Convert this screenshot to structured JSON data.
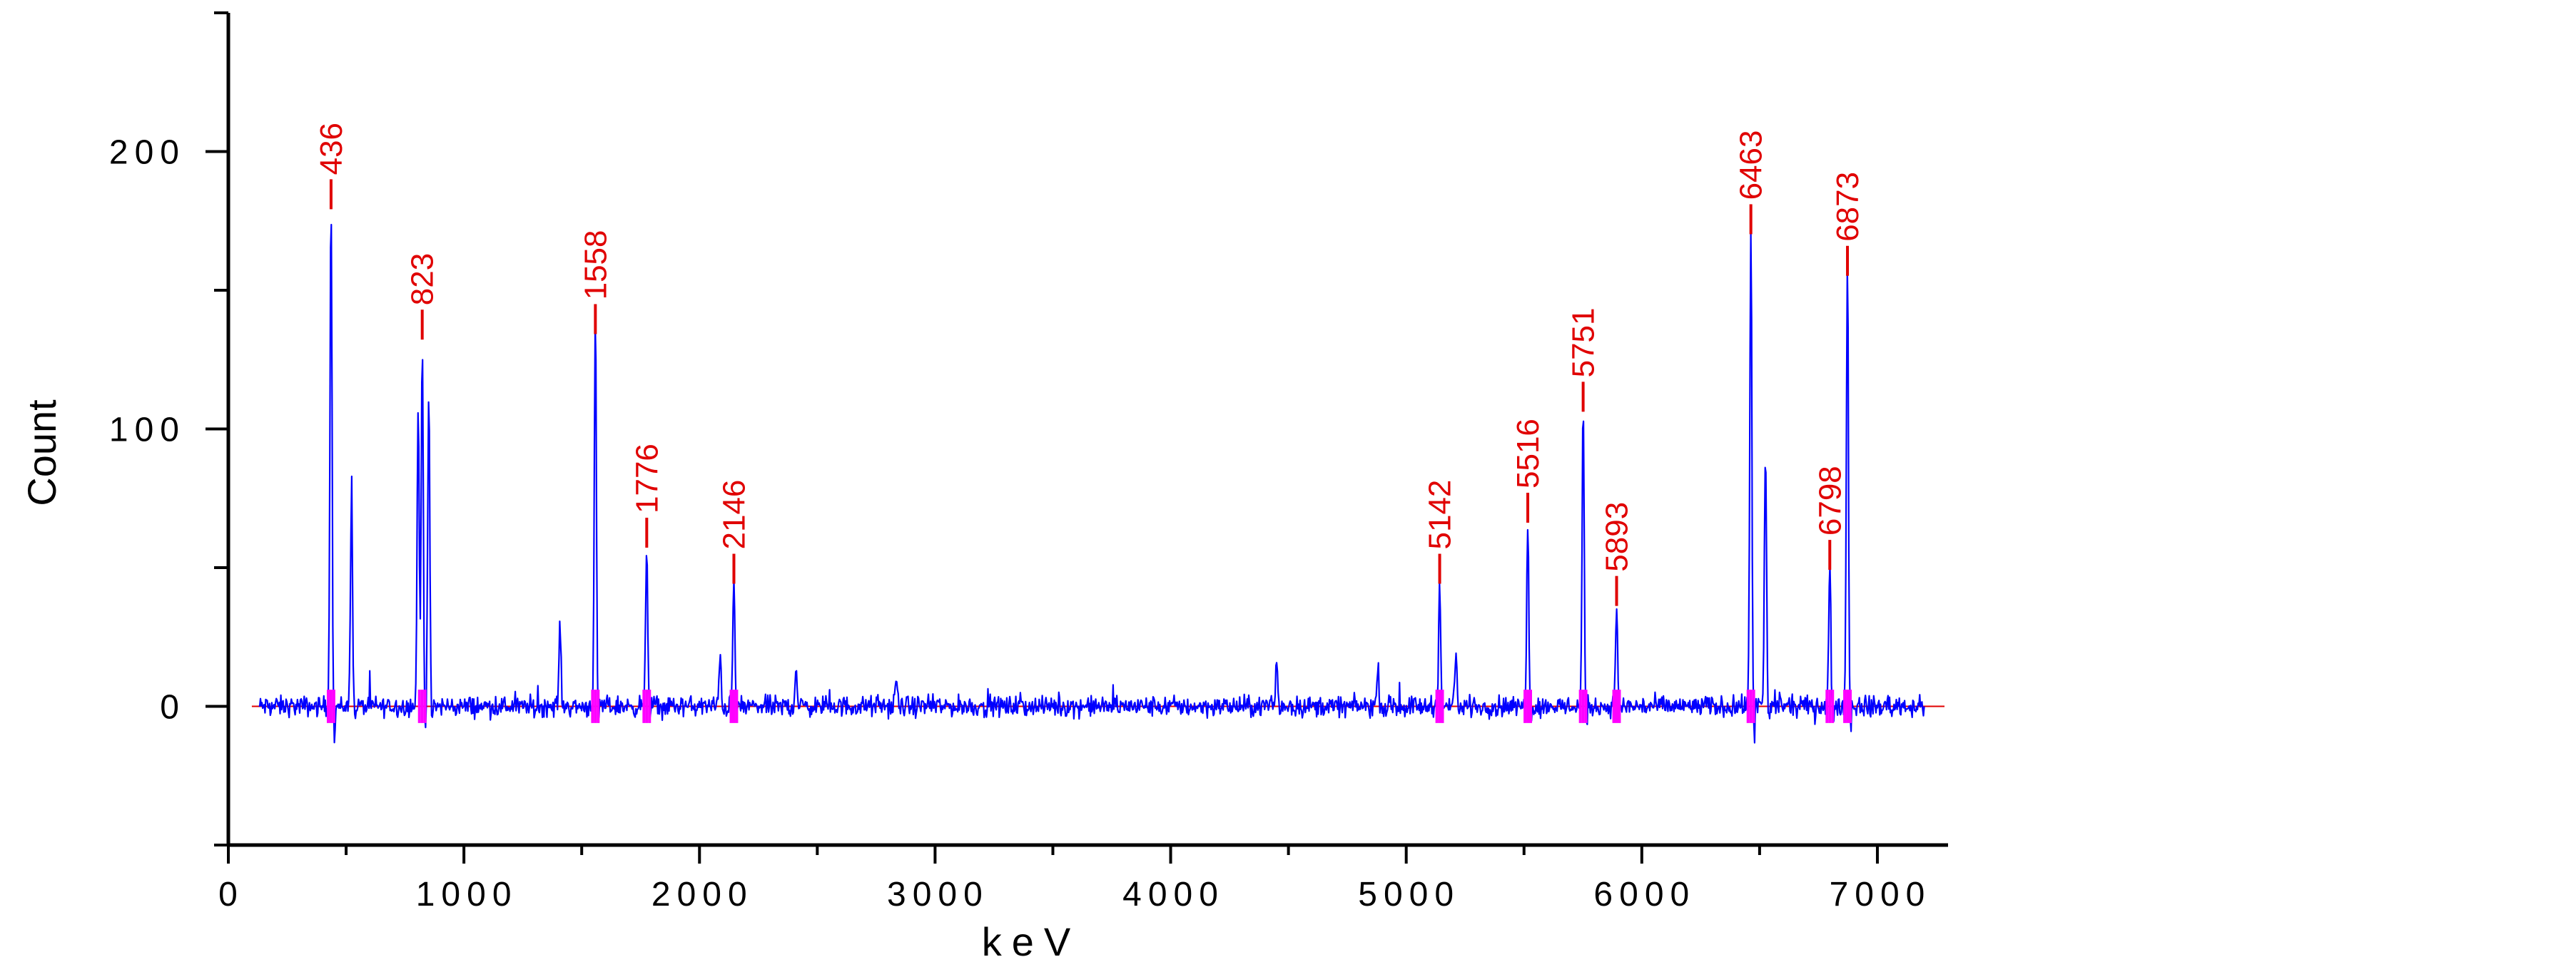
{
  "chart_data": {
    "type": "line",
    "title": "",
    "xlabel": "keV",
    "ylabel": "Count",
    "xlim": [
      0,
      7300
    ],
    "ylim": [
      -50,
      250
    ],
    "x_ticks": [
      0,
      1000,
      2000,
      3000,
      4000,
      5000,
      6000,
      7000
    ],
    "y_ticks": [
      0,
      100,
      200
    ],
    "grid": false,
    "legend": "none",
    "series": [
      {
        "color": "#0000ff",
        "baseline_range": [
          130,
          7200
        ],
        "peaks": [
          {
            "x": 436,
            "y": 180
          },
          {
            "x": 523,
            "y": 76
          },
          {
            "x": 806,
            "y": 108
          },
          {
            "x": 823,
            "y": 135
          },
          {
            "x": 851,
            "y": 113
          },
          {
            "x": 1408,
            "y": 30
          },
          {
            "x": 1558,
            "y": 140
          },
          {
            "x": 1776,
            "y": 58
          },
          {
            "x": 2088,
            "y": 18
          },
          {
            "x": 2146,
            "y": 45
          },
          {
            "x": 2410,
            "y": 14
          },
          {
            "x": 2835,
            "y": 10
          },
          {
            "x": 4450,
            "y": 17
          },
          {
            "x": 4880,
            "y": 14
          },
          {
            "x": 5142,
            "y": 44
          },
          {
            "x": 5210,
            "y": 20
          },
          {
            "x": 5516,
            "y": 67
          },
          {
            "x": 5751,
            "y": 108
          },
          {
            "x": 5893,
            "y": 36
          },
          {
            "x": 6463,
            "y": 172
          },
          {
            "x": 6525,
            "y": 91
          },
          {
            "x": 6798,
            "y": 50
          },
          {
            "x": 6873,
            "y": 160
          }
        ]
      }
    ],
    "annotations": [
      {
        "label": "436",
        "x": 436,
        "y": 190
      },
      {
        "label": "823",
        "x": 823,
        "y": 143
      },
      {
        "label": "1558",
        "x": 1558,
        "y": 145
      },
      {
        "label": "1776",
        "x": 1776,
        "y": 68
      },
      {
        "label": "2146",
        "x": 2146,
        "y": 55
      },
      {
        "label": "5142",
        "x": 5142,
        "y": 55
      },
      {
        "label": "5516",
        "x": 5516,
        "y": 77
      },
      {
        "label": "5751",
        "x": 5751,
        "y": 117
      },
      {
        "label": "5893",
        "x": 5893,
        "y": 47
      },
      {
        "label": "6463",
        "x": 6463,
        "y": 181
      },
      {
        "label": "6798",
        "x": 6798,
        "y": 60
      },
      {
        "label": "6873",
        "x": 6873,
        "y": 166
      }
    ],
    "colors": {
      "spectrum": "#0000ff",
      "annotation": "#e00000",
      "fit_markers": "#ff00ff"
    }
  }
}
